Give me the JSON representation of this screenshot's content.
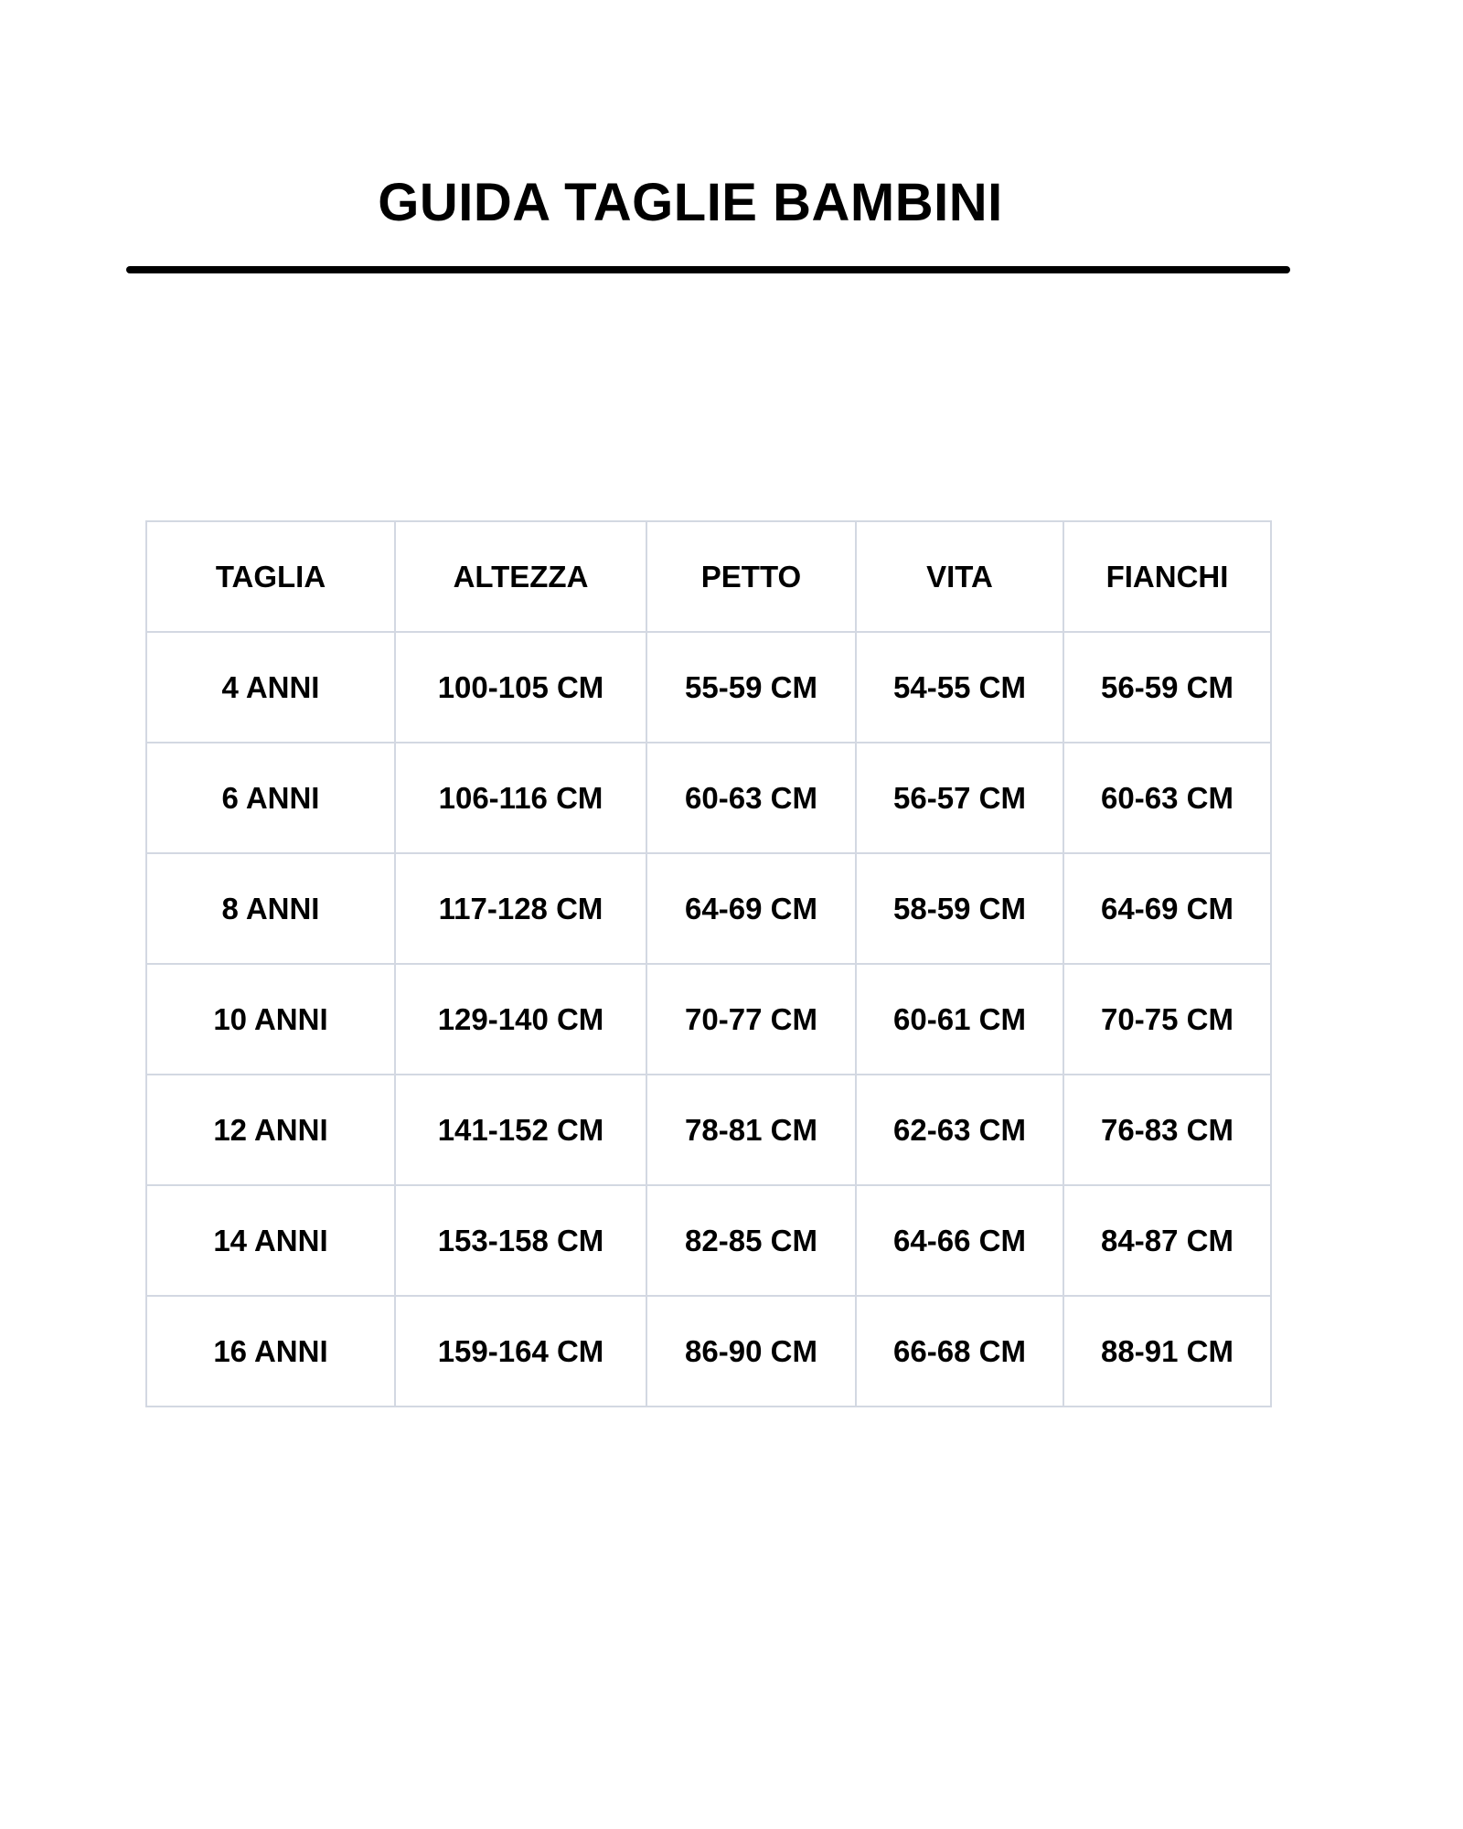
{
  "title": "GUIDA TAGLIE BAMBINI",
  "table": {
    "headers": [
      "TAGLIA",
      "ALTEZZA",
      "PETTO",
      "VITA",
      "FIANCHI"
    ],
    "rows": [
      [
        "4 ANNI",
        "100-105 CM",
        "55-59 CM",
        "54-55 CM",
        "56-59 CM"
      ],
      [
        "6 ANNI",
        "106-116 CM",
        "60-63 CM",
        "56-57 CM",
        "60-63 CM"
      ],
      [
        "8 ANNI",
        "117-128 CM",
        "64-69 CM",
        "58-59 CM",
        "64-69 CM"
      ],
      [
        "10 ANNI",
        "129-140 CM",
        "70-77 CM",
        "60-61 CM",
        "70-75 CM"
      ],
      [
        "12 ANNI",
        "141-152 CM",
        "78-81 CM",
        "62-63 CM",
        "76-83 CM"
      ],
      [
        "14 ANNI",
        "153-158 CM",
        "82-85 CM",
        "64-66 CM",
        "84-87 CM"
      ],
      [
        "16 ANNI",
        "159-164 CM",
        "86-90 CM",
        "66-68 CM",
        "88-91 CM"
      ]
    ]
  }
}
